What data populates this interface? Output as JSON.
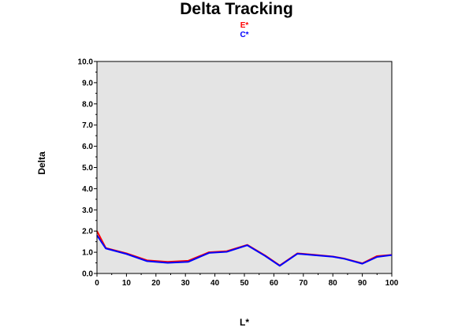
{
  "chart_data": {
    "type": "line",
    "title": "Delta Tracking",
    "xlabel": "L*",
    "ylabel": "Delta",
    "xlim": [
      0,
      100
    ],
    "ylim": [
      0,
      10
    ],
    "grid": false,
    "legend_position": "top-center",
    "background_color": "#e4e4e4",
    "x_ticks": [
      "0",
      "10",
      "20",
      "30",
      "40",
      "50",
      "60",
      "70",
      "80",
      "90",
      "100"
    ],
    "y_ticks": [
      "0.0",
      "1.0",
      "2.0",
      "3.0",
      "4.0",
      "5.0",
      "6.0",
      "7.0",
      "8.0",
      "9.0",
      "10.0"
    ],
    "series": [
      {
        "name": "E*",
        "color": "#ff0000",
        "x": [
          0,
          3,
          10,
          17,
          24,
          31,
          38,
          44,
          51,
          57,
          62,
          68,
          74,
          80,
          84,
          90,
          95,
          100
        ],
        "y": [
          2.0,
          1.2,
          0.95,
          0.62,
          0.55,
          0.6,
          1.0,
          1.05,
          1.35,
          0.85,
          0.38,
          0.95,
          0.88,
          0.8,
          0.7,
          0.48,
          0.82,
          0.88
        ]
      },
      {
        "name": "C*",
        "color": "#0000ff",
        "x": [
          0,
          3,
          10,
          17,
          24,
          31,
          38,
          44,
          51,
          57,
          62,
          68,
          74,
          80,
          84,
          90,
          95,
          100
        ],
        "y": [
          1.8,
          1.18,
          0.92,
          0.58,
          0.5,
          0.55,
          0.97,
          1.02,
          1.33,
          0.83,
          0.36,
          0.93,
          0.86,
          0.79,
          0.69,
          0.46,
          0.78,
          0.87
        ]
      }
    ]
  }
}
